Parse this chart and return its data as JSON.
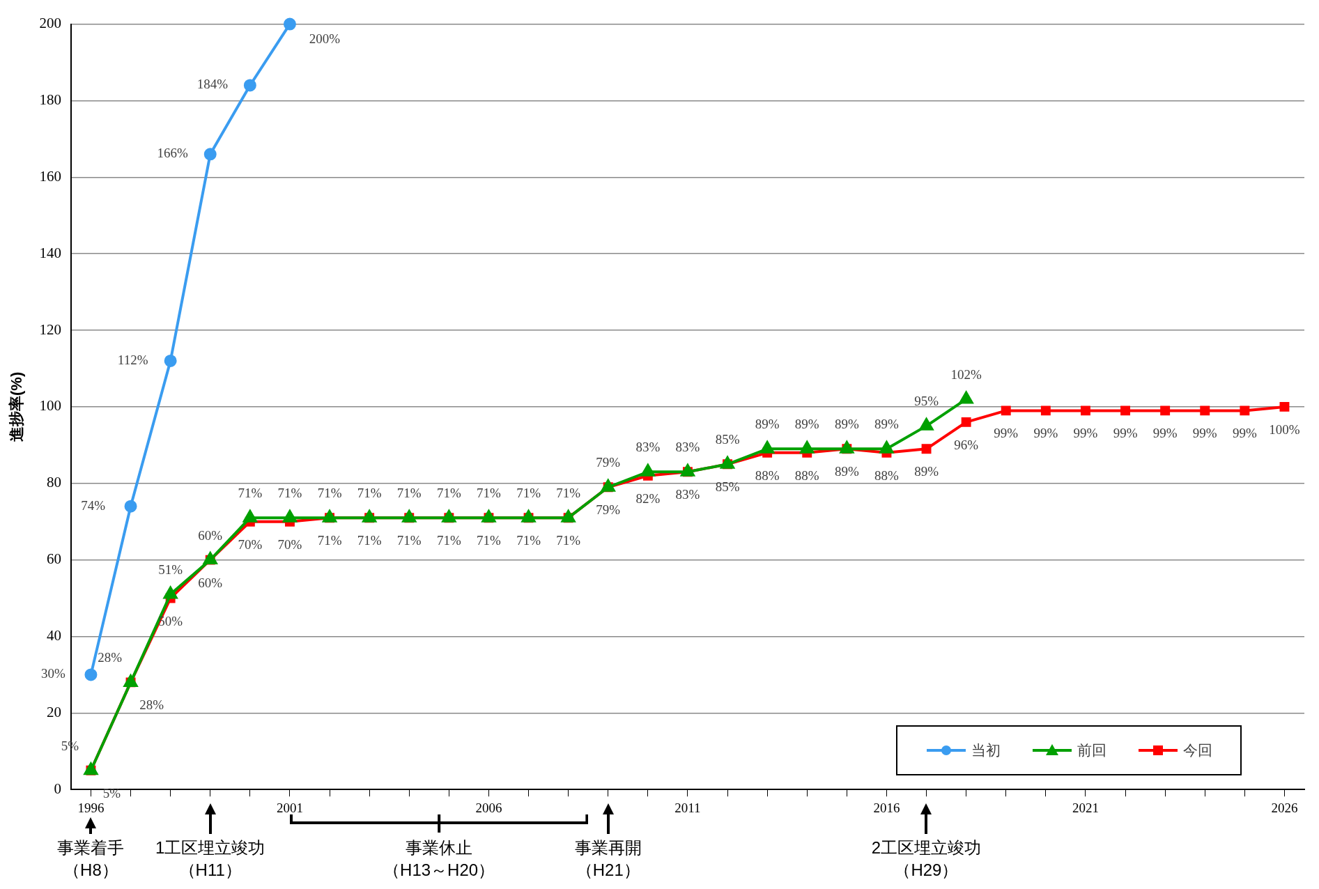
{
  "chart_data": {
    "type": "line",
    "ylabel": "進捗率(%)",
    "x": [
      1996,
      1997,
      1998,
      1999,
      2000,
      2001,
      2002,
      2003,
      2004,
      2005,
      2006,
      2007,
      2008,
      2009,
      2010,
      2011,
      2012,
      2013,
      2014,
      2015,
      2016,
      2017,
      2018,
      2019,
      2020,
      2021,
      2022,
      2023,
      2024,
      2025,
      2026
    ],
    "xlim": [
      1995.5,
      2026.5
    ],
    "xticks": [
      1996,
      {
        "value": 1997,
        "label": null
      },
      {
        "value": 1998,
        "label": null
      },
      {
        "value": 1999,
        "label": null
      },
      {
        "value": 2000,
        "label": null
      },
      2001,
      {
        "value": 2002,
        "label": null
      },
      {
        "value": 2003,
        "label": null
      },
      {
        "value": 2004,
        "label": null
      },
      {
        "value": 2005,
        "label": null
      },
      2006,
      {
        "value": 2007,
        "label": null
      },
      {
        "value": 2008,
        "label": null
      },
      {
        "value": 2009,
        "label": null
      },
      {
        "value": 2010,
        "label": null
      },
      2011,
      {
        "value": 2012,
        "label": null
      },
      {
        "value": 2013,
        "label": null
      },
      {
        "value": 2014,
        "label": null
      },
      {
        "value": 2015,
        "label": null
      },
      2016,
      {
        "value": 2017,
        "label": null
      },
      {
        "value": 2018,
        "label": null
      },
      {
        "value": 2019,
        "label": null
      },
      {
        "value": 2020,
        "label": null
      },
      2021,
      {
        "value": 2022,
        "label": null
      },
      {
        "value": 2023,
        "label": null
      },
      {
        "value": 2024,
        "label": null
      },
      {
        "value": 2025,
        "label": null
      },
      2026
    ],
    "ylim": [
      0,
      200
    ],
    "yticks": [
      0,
      20,
      40,
      60,
      80,
      100,
      120,
      140,
      160,
      180,
      200
    ],
    "grid": "y",
    "legend": "bottom right",
    "series": [
      {
        "name": "当初",
        "color": "#3a9cf0",
        "marker": "circle",
        "x": [
          1996,
          1997,
          1998,
          1999,
          2000,
          2001
        ],
        "values": [
          30,
          74,
          112,
          166,
          184,
          200
        ],
        "value_labels": [
          "30%",
          "74%",
          "112%",
          "166%",
          "184%",
          "200%"
        ]
      },
      {
        "name": "前回",
        "color": "#00a000",
        "marker": "triangle",
        "x": [
          1996,
          1997,
          1998,
          1999,
          2000,
          2001,
          2002,
          2003,
          2004,
          2005,
          2006,
          2007,
          2008,
          2009,
          2010,
          2011,
          2012,
          2013,
          2014,
          2015,
          2016,
          2017,
          2018
        ],
        "values": [
          5,
          28,
          51,
          60,
          71,
          71,
          71,
          71,
          71,
          71,
          71,
          71,
          71,
          79,
          83,
          83,
          85,
          89,
          89,
          89,
          89,
          95,
          102
        ],
        "value_labels": [
          "5%",
          "28%",
          "51%",
          "60%",
          "71%",
          "71%",
          "71%",
          "71%",
          "71%",
          "71%",
          "71%",
          "71%",
          "71%",
          "79%",
          "83%",
          "83%",
          "85%",
          "89%",
          "89%",
          "89%",
          "89%",
          "95%",
          "102%"
        ]
      },
      {
        "name": "今回",
        "color": "#ff0000",
        "marker": "square",
        "values": [
          5,
          28,
          50,
          60,
          70,
          70,
          71,
          71,
          71,
          71,
          71,
          71,
          71,
          79,
          82,
          83,
          85,
          88,
          88,
          89,
          88,
          89,
          96,
          99,
          99,
          99,
          99,
          99,
          99,
          99,
          100
        ],
        "value_labels": [
          "5%",
          "28%",
          "50%",
          "60%",
          "70%",
          "70%",
          "71%",
          "71%",
          "71%",
          "71%",
          "71%",
          "71%",
          "71%",
          "79%",
          "82%",
          "83%",
          "85%",
          "88%",
          "88%",
          "89%",
          "88%",
          "89%",
          "96%",
          "99%",
          "99%",
          "99%",
          "99%",
          "99%",
          "99%",
          "99%",
          "100%"
        ]
      }
    ],
    "annotations": [
      "事業着手",
      "（H8）",
      "1工区埋立竣功",
      "（H11）",
      "事業休止",
      "（H13～H20）",
      "事業再開",
      "（H21）",
      "2工区埋立竣功",
      "（H29）"
    ]
  }
}
